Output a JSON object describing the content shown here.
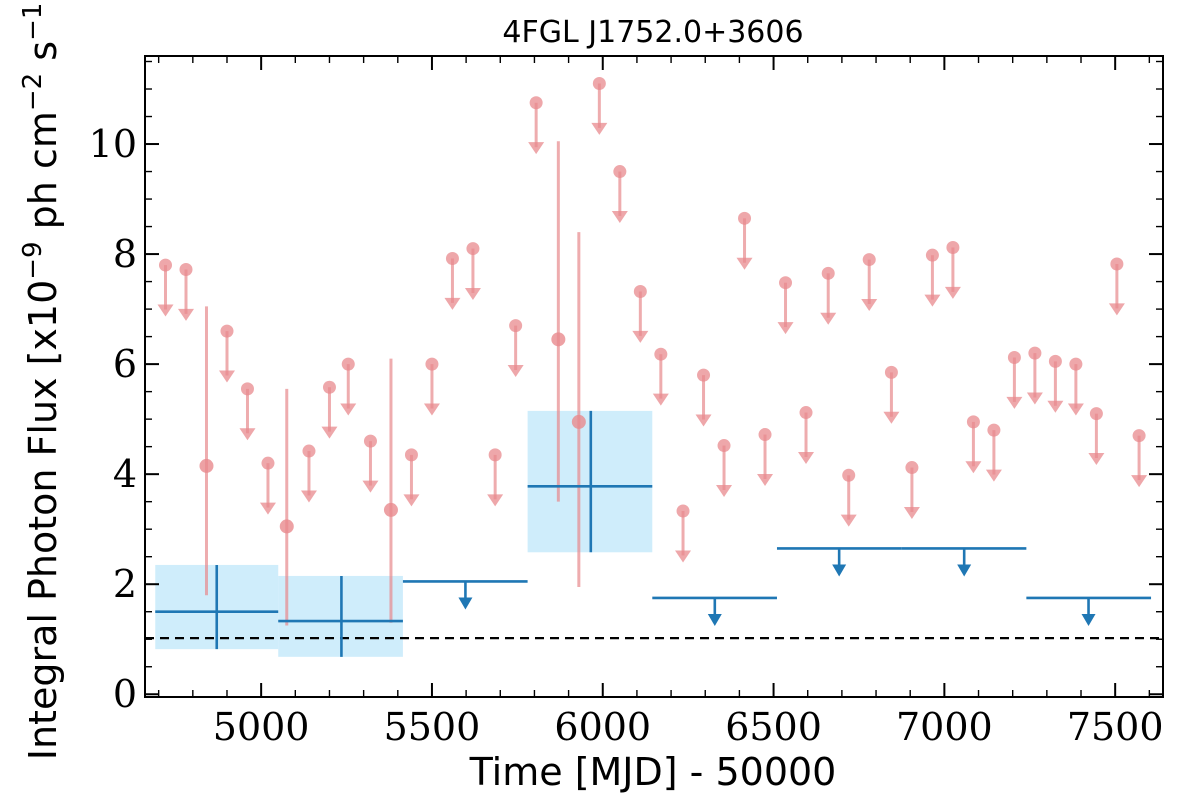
{
  "chart_data": {
    "type": "scatter",
    "title": "4FGL J1752.0+3606",
    "xlabel": "Time [MJD] - 50000",
    "ylabel": "Integral Photon Flux [x10⁻⁹ ph cm⁻² s⁻¹]",
    "ylabel_parts": {
      "prefix": "Integral Photon Flux [x10",
      "exp1": "−9",
      "mid1": " ph cm",
      "exp2": "−2",
      "mid2": " s",
      "exp3": "−1",
      "suffix": "]"
    },
    "xlim": [
      4660,
      7640
    ],
    "ylim": [
      -0.05,
      11.6
    ],
    "xticks": [
      5000,
      5500,
      6000,
      6500,
      7000,
      7500
    ],
    "xtick_labels": [
      "5000",
      "5500",
      "6000",
      "6500",
      "7000",
      "7500"
    ],
    "yticks": [
      0,
      2,
      4,
      6,
      8,
      10
    ],
    "ytick_labels": [
      "0",
      "2",
      "4",
      "6",
      "8",
      "10"
    ],
    "reference_line": {
      "y": 1.02,
      "style": "dashed",
      "color": "#000000"
    },
    "colors": {
      "short_bins": "#e8898d",
      "long_bins": "#1f77b4",
      "long_bins_band": "#bfe7fa",
      "axes": "#000000"
    },
    "series": [
      {
        "role": "short_time_bins",
        "detections": [
          {
            "x": 4840,
            "y": 4.15,
            "ylo": 1.8,
            "yhi": 7.05
          },
          {
            "x": 5075,
            "y": 3.05,
            "ylo": 1.25,
            "yhi": 5.55
          },
          {
            "x": 5380,
            "y": 3.35,
            "ylo": 1.3,
            "yhi": 6.1
          },
          {
            "x": 5870,
            "y": 6.45,
            "ylo": 3.5,
            "yhi": 10.05
          },
          {
            "x": 5930,
            "y": 4.95,
            "ylo": 1.95,
            "yhi": 8.4
          }
        ],
        "upper_limits": [
          {
            "x": 4720,
            "y": 7.8
          },
          {
            "x": 4780,
            "y": 7.72
          },
          {
            "x": 4900,
            "y": 6.6
          },
          {
            "x": 4960,
            "y": 5.55
          },
          {
            "x": 5020,
            "y": 4.2
          },
          {
            "x": 5140,
            "y": 4.42
          },
          {
            "x": 5200,
            "y": 5.58
          },
          {
            "x": 5255,
            "y": 6.0
          },
          {
            "x": 5320,
            "y": 4.6
          },
          {
            "x": 5440,
            "y": 4.35
          },
          {
            "x": 5500,
            "y": 6.0
          },
          {
            "x": 5560,
            "y": 7.92
          },
          {
            "x": 5620,
            "y": 8.1
          },
          {
            "x": 5685,
            "y": 4.35
          },
          {
            "x": 5745,
            "y": 6.7
          },
          {
            "x": 5805,
            "y": 10.75
          },
          {
            "x": 5990,
            "y": 11.1
          },
          {
            "x": 6050,
            "y": 9.5
          },
          {
            "x": 6110,
            "y": 7.32
          },
          {
            "x": 6170,
            "y": 6.18
          },
          {
            "x": 6235,
            "y": 3.33
          },
          {
            "x": 6295,
            "y": 5.8
          },
          {
            "x": 6355,
            "y": 4.52
          },
          {
            "x": 6415,
            "y": 8.65
          },
          {
            "x": 6475,
            "y": 4.72
          },
          {
            "x": 6535,
            "y": 7.48
          },
          {
            "x": 6595,
            "y": 5.12
          },
          {
            "x": 6660,
            "y": 7.65
          },
          {
            "x": 6720,
            "y": 3.98
          },
          {
            "x": 6780,
            "y": 7.9
          },
          {
            "x": 6845,
            "y": 5.85
          },
          {
            "x": 6905,
            "y": 4.12
          },
          {
            "x": 6965,
            "y": 7.98
          },
          {
            "x": 7025,
            "y": 8.12
          },
          {
            "x": 7085,
            "y": 4.95
          },
          {
            "x": 7145,
            "y": 4.8
          },
          {
            "x": 7205,
            "y": 6.12
          },
          {
            "x": 7265,
            "y": 6.2
          },
          {
            "x": 7325,
            "y": 6.05
          },
          {
            "x": 7385,
            "y": 6.0
          },
          {
            "x": 7445,
            "y": 5.1
          },
          {
            "x": 7505,
            "y": 7.82
          },
          {
            "x": 7570,
            "y": 4.7
          }
        ]
      },
      {
        "role": "long_time_bins",
        "detections": [
          {
            "x0": 4690,
            "x1": 5050,
            "xc": 4870,
            "y": 1.5,
            "ylo": 0.82,
            "yhi": 2.35
          },
          {
            "x0": 5050,
            "x1": 5415,
            "xc": 5235,
            "y": 1.33,
            "ylo": 0.68,
            "yhi": 2.15
          },
          {
            "x0": 5780,
            "x1": 6145,
            "xc": 5965,
            "y": 3.78,
            "ylo": 2.58,
            "yhi": 5.15
          }
        ],
        "upper_limits": [
          {
            "x0": 5415,
            "x1": 5780,
            "xc": 5598,
            "y": 2.05
          },
          {
            "x0": 6145,
            "x1": 6510,
            "xc": 6328,
            "y": 1.75
          },
          {
            "x0": 6510,
            "x1": 6875,
            "xc": 6692,
            "y": 2.65
          },
          {
            "x0": 6875,
            "x1": 7240,
            "xc": 7058,
            "y": 2.65
          },
          {
            "x0": 7240,
            "x1": 7605,
            "xc": 7422,
            "y": 1.75
          }
        ]
      }
    ],
    "grid": false,
    "ticks_on_all_sides": true
  }
}
